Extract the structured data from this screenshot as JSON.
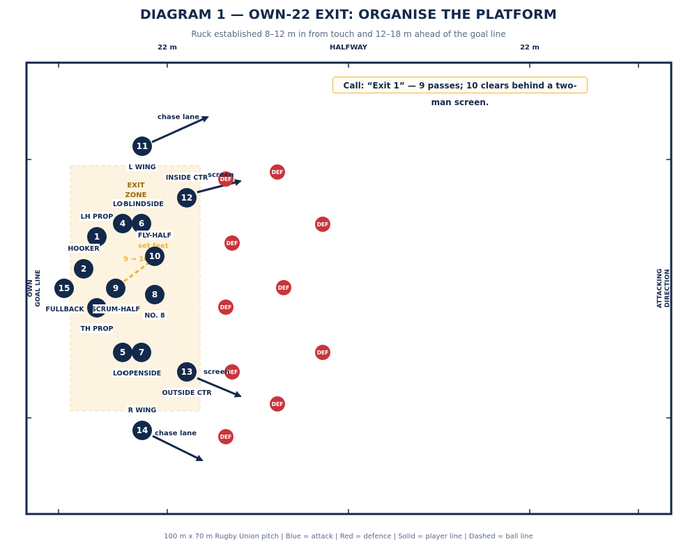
{
  "title": "DIAGRAM 1 — OWN-22 EXIT: ORGANISE THE PLATFORM",
  "subtitle": "Ruck established 8–12 m in from touch and 12–18 m ahead of the goal line",
  "footer": "100 m x 70 m Rugby Union pitch | Blue = attack | Red = defence | Solid = player line | Dashed = ball line",
  "pitch_markers": {
    "left_22": "22 m",
    "halfway": "HALFWAY",
    "right_22": "22 m"
  },
  "side_labels": {
    "left": [
      "OWN",
      "GOAL LINE"
    ],
    "right": [
      "ATTACKING",
      "DIRECTION"
    ]
  },
  "callout": "Call: “Exit 1” — 9 passes; 10 clears behind a two-man screen.",
  "exit_zone": [
    "EXIT",
    "ZONE"
  ],
  "ball_line": {
    "label": "9 → 10",
    "set_feet": "set feet"
  },
  "annotations": {
    "chase_top": "chase lane",
    "chase_bottom": "chase lane",
    "screen_top": "screen",
    "screen_bottom": "screen"
  },
  "colors": {
    "attack": "#13294b",
    "defence": "#c9343b",
    "ball_line": "#f0b43a",
    "zone_fill": "#fdf3e1"
  },
  "attackers": [
    {
      "num": "11",
      "label": "L WING"
    },
    {
      "num": "12",
      "label": "INSIDE CTR"
    },
    {
      "num": "4",
      "label": "LOCK"
    },
    {
      "num": "6",
      "label": "BLINDSIDE"
    },
    {
      "num": "1",
      "label": "LH PROP"
    },
    {
      "num": "10",
      "label": "FLY-HALF"
    },
    {
      "num": "2",
      "label": "HOOKER"
    },
    {
      "num": "15",
      "label": "FULLBACK"
    },
    {
      "num": "9",
      "label": "SCRUM-HALF"
    },
    {
      "num": "8",
      "label": "NO. 8"
    },
    {
      "num": "3",
      "label": "TH PROP"
    },
    {
      "num": "5",
      "label": "LOCK"
    },
    {
      "num": "7",
      "label": "OPENSIDE"
    },
    {
      "num": "13",
      "label": "OUTSIDE CTR"
    },
    {
      "num": "14",
      "label": "R WING"
    }
  ],
  "defender_label": "DEF"
}
